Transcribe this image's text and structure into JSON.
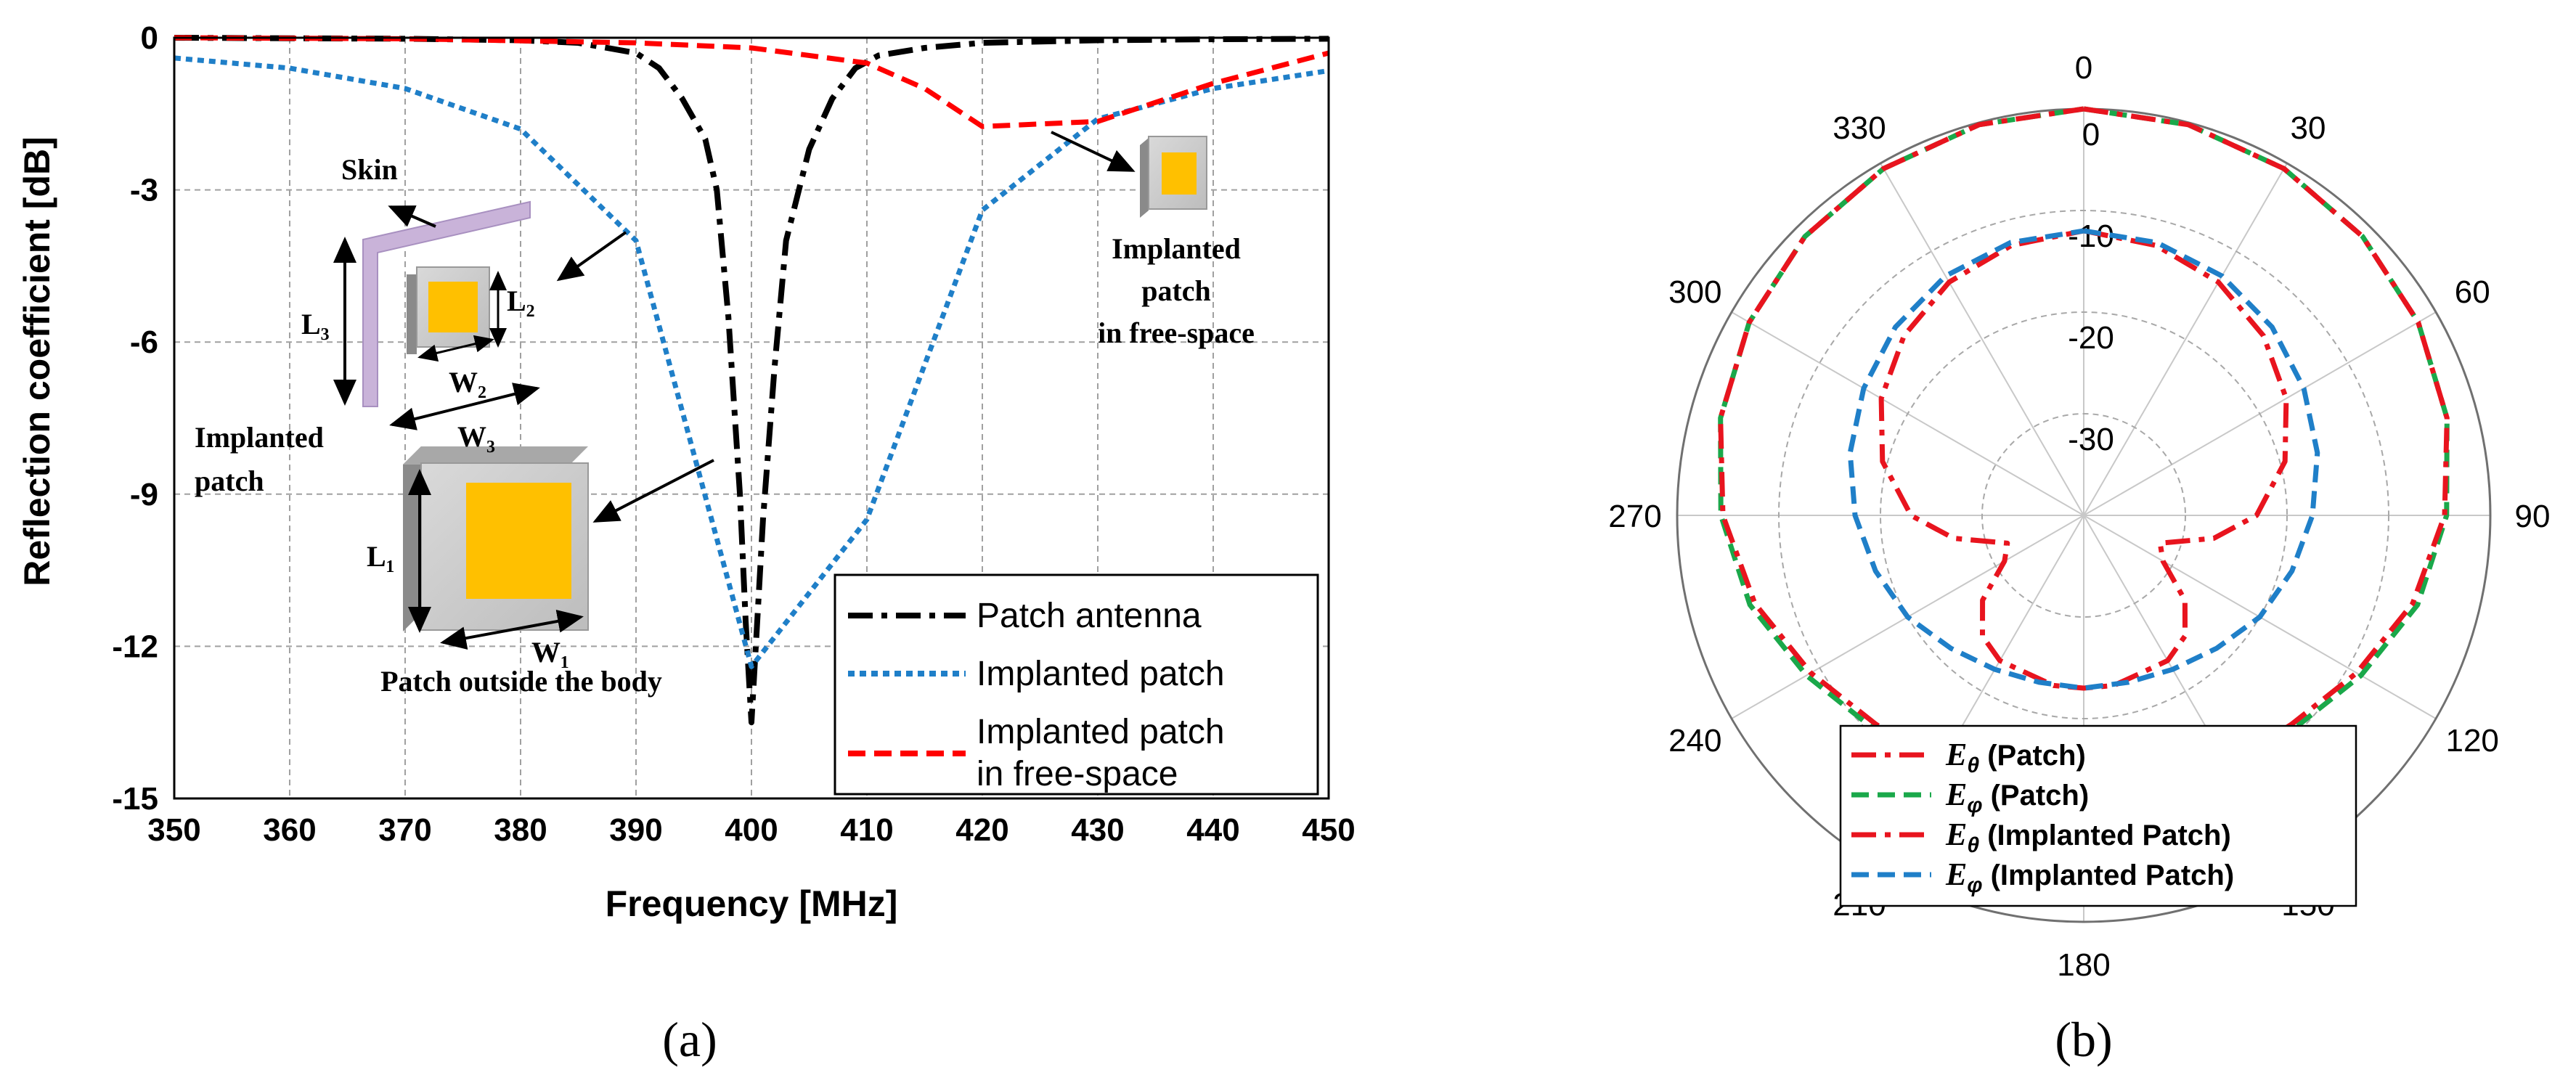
{
  "chart_data": [
    {
      "panel_label": "(a)",
      "type": "line",
      "title": "",
      "xlabel": "Frequency [MHz]",
      "ylabel": "Reflection coefficient [dB]",
      "xlim": [
        350,
        450
      ],
      "ylim": [
        -15,
        0
      ],
      "xticks": [
        "350",
        "360",
        "370",
        "380",
        "390",
        "400",
        "410",
        "420",
        "430",
        "440",
        "450"
      ],
      "yticks": [
        "0",
        "-3",
        "-6",
        "-9",
        "-12",
        "-15"
      ],
      "grid": true,
      "legend_position": "bottom-right",
      "series": [
        {
          "name": "Patch antenna",
          "color": "#000000",
          "dash": "dash-dot",
          "x": [
            350,
            370,
            380,
            385,
            390,
            392,
            394,
            396,
            397,
            398,
            399,
            399.5,
            400,
            400.5,
            401,
            402,
            403,
            405,
            407,
            409,
            411,
            415,
            420,
            430,
            440,
            450
          ],
          "y": [
            0,
            -0.02,
            -0.05,
            -0.1,
            -0.3,
            -0.6,
            -1.2,
            -2.0,
            -3.0,
            -5.5,
            -9.0,
            -11.5,
            -13.5,
            -11.5,
            -9.5,
            -6.5,
            -4.0,
            -2.2,
            -1.2,
            -0.6,
            -0.35,
            -0.2,
            -0.1,
            -0.05,
            -0.03,
            -0.02
          ]
        },
        {
          "name": "Implanted patch",
          "color": "#1f7fc8",
          "dash": "dotted",
          "x": [
            350,
            360,
            370,
            380,
            390,
            400,
            410,
            420,
            430,
            440,
            450
          ],
          "y": [
            -0.4,
            -0.6,
            -1.0,
            -1.8,
            -4.0,
            -12.4,
            -9.5,
            -3.4,
            -1.6,
            -1.0,
            -0.65
          ]
        },
        {
          "name": "Implanted patch\nin free-space",
          "color": "#ff0000",
          "dash": "dashed",
          "x": [
            350,
            370,
            390,
            400,
            410,
            415,
            420,
            425,
            430,
            440,
            450
          ],
          "y": [
            0,
            -0.02,
            -0.1,
            -0.2,
            -0.5,
            -1.0,
            -1.75,
            -1.7,
            -1.65,
            -0.9,
            -0.3
          ]
        }
      ],
      "annotations": {
        "skin": "Skin",
        "implanted_patch_line1": "Implanted",
        "implanted_patch_line2": "patch",
        "free_space_line1": "Implanted",
        "free_space_line2": "patch",
        "free_space_line3": "in free-space",
        "outside_body": "Patch outside the body",
        "l1": "L₁",
        "w1": "W₁",
        "l2": "L₂",
        "w2": "W₂",
        "l3": "L₃",
        "w3": "W₃"
      }
    },
    {
      "panel_label": "(b)",
      "type": "polar",
      "title": "",
      "angle_ticks": [
        "0",
        "30",
        "60",
        "90",
        "120",
        "150",
        "180",
        "210",
        "240",
        "270",
        "300",
        "330"
      ],
      "radial_ticks": [
        "0",
        "-10",
        "-20",
        "-30"
      ],
      "r_range_db": [
        -40,
        0
      ],
      "grid": true,
      "legend_position": "bottom-left",
      "series": [
        {
          "name": "E_θ (Patch)",
          "legend_symbol": "E",
          "legend_sub": "θ",
          "legend_rest": " (Patch)",
          "color": "#e8141e",
          "dash": "dash-dot",
          "angles_deg": [
            0,
            15,
            30,
            45,
            60,
            75,
            90,
            105,
            120,
            135,
            150,
            160,
            170,
            180,
            190,
            200,
            210,
            225,
            240,
            255,
            270,
            285,
            300,
            315,
            330,
            345,
            360
          ],
          "values_db": [
            0,
            -0.2,
            -0.6,
            -1.2,
            -2.0,
            -3.0,
            -4.5,
            -6.5,
            -9.0,
            -11.0,
            -11.5,
            -9.5,
            -6.5,
            -6.0,
            -6.5,
            -9.5,
            -11.5,
            -11.0,
            -9.0,
            -6.5,
            -4.5,
            -3.0,
            -2.0,
            -1.2,
            -0.6,
            -0.2,
            0
          ]
        },
        {
          "name": "E_φ (Patch)",
          "legend_symbol": "E",
          "legend_sub": "φ",
          "legend_rest": " (Patch)",
          "color": "#1aa84a",
          "dash": "dashed",
          "angles_deg": [
            0,
            15,
            30,
            45,
            60,
            75,
            90,
            105,
            120,
            135,
            150,
            160,
            170,
            180,
            190,
            200,
            210,
            225,
            240,
            255,
            270,
            285,
            300,
            315,
            330,
            345,
            360
          ],
          "values_db": [
            0,
            -0.2,
            -0.6,
            -1.2,
            -2.0,
            -3.0,
            -4.3,
            -6.0,
            -8.5,
            -10.5,
            -11.2,
            -9.2,
            -6.3,
            -5.8,
            -6.3,
            -9.2,
            -11.2,
            -10.5,
            -8.5,
            -6.0,
            -4.3,
            -3.0,
            -2.0,
            -1.2,
            -0.6,
            -0.2,
            0
          ]
        },
        {
          "name": "E_θ (Implanted Patch)",
          "legend_symbol": "E",
          "legend_sub": "θ",
          "legend_rest": " (Implanted Patch)",
          "color": "#e8141e",
          "dash": "dash-dot",
          "angles_deg": [
            0,
            15,
            30,
            45,
            60,
            75,
            90,
            100,
            110,
            120,
            130,
            140,
            150,
            160,
            170,
            180,
            190,
            200,
            210,
            220,
            230,
            240,
            250,
            260,
            270,
            285,
            300,
            315,
            330,
            345,
            360
          ],
          "values_db": [
            -12,
            -12.5,
            -13.5,
            -15,
            -17,
            -19.5,
            -23,
            -27,
            -32,
            -31,
            -27,
            -24.5,
            -23.5,
            -23.5,
            -23,
            -23,
            -23,
            -23.5,
            -23.5,
            -24.5,
            -27,
            -31,
            -32,
            -27,
            -23,
            -19.5,
            -17,
            -15,
            -13.5,
            -12.5,
            -12
          ]
        },
        {
          "name": "E_φ (Implanted Patch)",
          "legend_symbol": "E",
          "legend_sub": "φ",
          "legend_rest": " (Implanted Patch)",
          "color": "#1f7fc8",
          "dash": "dashed",
          "angles_deg": [
            0,
            15,
            30,
            45,
            60,
            75,
            90,
            105,
            120,
            135,
            150,
            165,
            180,
            195,
            210,
            225,
            240,
            255,
            270,
            285,
            300,
            315,
            330,
            345,
            360
          ],
          "values_db": [
            -12,
            -12.2,
            -12.8,
            -13.8,
            -15,
            -16.2,
            -17.5,
            -18.8,
            -20,
            -21.5,
            -22.5,
            -23,
            -23,
            -23,
            -22.5,
            -21.5,
            -20,
            -18.8,
            -17.5,
            -16.2,
            -15,
            -13.8,
            -12.8,
            -12.2,
            -12
          ]
        }
      ]
    }
  ]
}
